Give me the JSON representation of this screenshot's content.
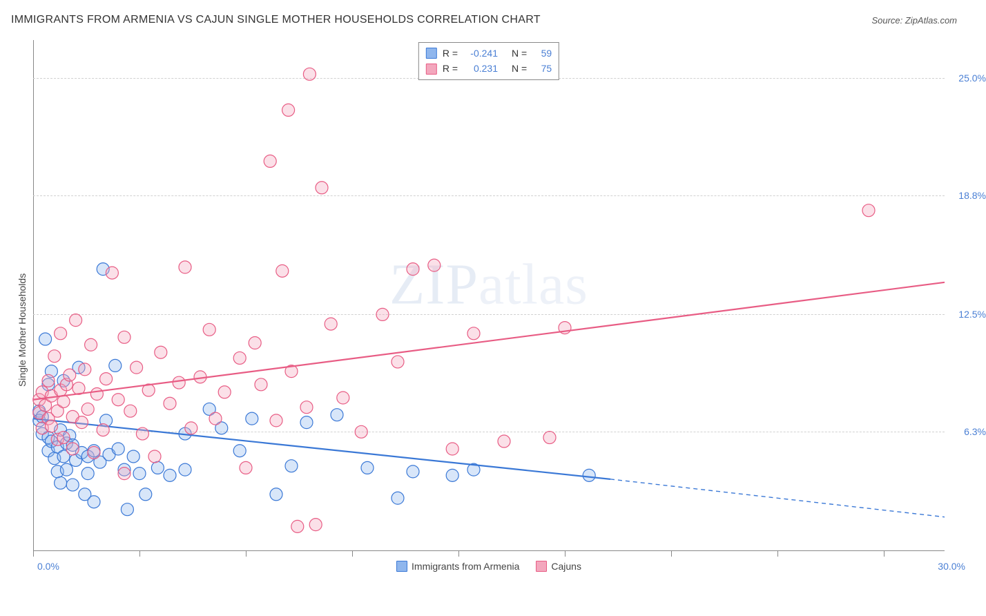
{
  "title": "IMMIGRANTS FROM ARMENIA VS CAJUN SINGLE MOTHER HOUSEHOLDS CORRELATION CHART",
  "source": "Source: ZipAtlas.com",
  "y_axis_label": "Single Mother Households",
  "watermark": {
    "bold": "ZIP",
    "light": "atlas"
  },
  "chart": {
    "type": "scatter",
    "xlim": [
      0,
      30
    ],
    "ylim": [
      0,
      27
    ],
    "x_ticks": [
      0,
      3.5,
      7,
      10.5,
      14,
      17.5,
      21,
      24.5,
      28
    ],
    "y_gridlines": [
      6.3,
      12.5,
      18.8,
      25.0
    ],
    "y_tick_labels": [
      "6.3%",
      "12.5%",
      "18.8%",
      "25.0%"
    ],
    "x_label_min": "0.0%",
    "x_label_max": "30.0%",
    "background_color": "#ffffff",
    "grid_color": "#d0d0d0",
    "axis_color": "#888888",
    "marker_radius": 9,
    "line_width": 2.2,
    "series": [
      {
        "name": "Immigrants from Armenia",
        "color_stroke": "#3a78d6",
        "color_fill": "#8fb6ed",
        "R": "-0.241",
        "N": "59",
        "trend": {
          "x1": 0,
          "y1": 7.0,
          "x2": 19,
          "y2": 3.8,
          "ext_x2": 30,
          "ext_y2": 1.8
        },
        "points": [
          [
            0.2,
            7.4
          ],
          [
            0.2,
            6.9
          ],
          [
            0.3,
            7.1
          ],
          [
            0.3,
            6.2
          ],
          [
            0.4,
            11.2
          ],
          [
            0.5,
            8.8
          ],
          [
            0.5,
            6.0
          ],
          [
            0.5,
            5.3
          ],
          [
            0.6,
            9.5
          ],
          [
            0.6,
            5.8
          ],
          [
            0.7,
            4.9
          ],
          [
            0.8,
            5.5
          ],
          [
            0.8,
            4.2
          ],
          [
            0.9,
            6.4
          ],
          [
            0.9,
            3.6
          ],
          [
            1.0,
            9.0
          ],
          [
            1.0,
            5.0
          ],
          [
            1.1,
            5.7
          ],
          [
            1.1,
            4.3
          ],
          [
            1.2,
            6.1
          ],
          [
            1.3,
            3.5
          ],
          [
            1.3,
            5.6
          ],
          [
            1.4,
            4.8
          ],
          [
            1.5,
            9.7
          ],
          [
            1.6,
            5.2
          ],
          [
            1.7,
            3.0
          ],
          [
            1.8,
            5.0
          ],
          [
            1.8,
            4.1
          ],
          [
            2.0,
            5.3
          ],
          [
            2.0,
            2.6
          ],
          [
            2.2,
            4.7
          ],
          [
            2.3,
            14.9
          ],
          [
            2.4,
            6.9
          ],
          [
            2.5,
            5.1
          ],
          [
            2.7,
            9.8
          ],
          [
            2.8,
            5.4
          ],
          [
            3.0,
            4.3
          ],
          [
            3.1,
            2.2
          ],
          [
            3.3,
            5.0
          ],
          [
            3.5,
            4.1
          ],
          [
            3.7,
            3.0
          ],
          [
            4.1,
            4.4
          ],
          [
            4.5,
            4.0
          ],
          [
            5.0,
            6.2
          ],
          [
            5.0,
            4.3
          ],
          [
            5.8,
            7.5
          ],
          [
            6.2,
            6.5
          ],
          [
            6.8,
            5.3
          ],
          [
            7.2,
            7.0
          ],
          [
            8.0,
            3.0
          ],
          [
            8.5,
            4.5
          ],
          [
            9.0,
            6.8
          ],
          [
            10.0,
            7.2
          ],
          [
            11.0,
            4.4
          ],
          [
            12.0,
            2.8
          ],
          [
            12.5,
            4.2
          ],
          [
            13.8,
            4.0
          ],
          [
            14.5,
            4.3
          ],
          [
            18.3,
            4.0
          ]
        ]
      },
      {
        "name": "Cajuns",
        "color_stroke": "#e85c84",
        "color_fill": "#f3a7bd",
        "R": "0.231",
        "N": "75",
        "trend": {
          "x1": 0,
          "y1": 8.0,
          "x2": 30,
          "y2": 14.2
        },
        "points": [
          [
            0.2,
            8.0
          ],
          [
            0.2,
            7.3
          ],
          [
            0.3,
            8.4
          ],
          [
            0.3,
            6.5
          ],
          [
            0.4,
            7.7
          ],
          [
            0.5,
            9.0
          ],
          [
            0.5,
            7.0
          ],
          [
            0.6,
            8.2
          ],
          [
            0.6,
            6.6
          ],
          [
            0.7,
            10.3
          ],
          [
            0.8,
            7.4
          ],
          [
            0.8,
            5.9
          ],
          [
            0.9,
            8.5
          ],
          [
            0.9,
            11.5
          ],
          [
            1.0,
            7.9
          ],
          [
            1.0,
            6.0
          ],
          [
            1.1,
            8.8
          ],
          [
            1.2,
            9.3
          ],
          [
            1.3,
            5.4
          ],
          [
            1.3,
            7.1
          ],
          [
            1.4,
            12.2
          ],
          [
            1.5,
            8.6
          ],
          [
            1.6,
            6.8
          ],
          [
            1.7,
            9.6
          ],
          [
            1.8,
            7.5
          ],
          [
            1.9,
            10.9
          ],
          [
            2.0,
            5.2
          ],
          [
            2.1,
            8.3
          ],
          [
            2.3,
            6.4
          ],
          [
            2.4,
            9.1
          ],
          [
            2.6,
            14.7
          ],
          [
            2.8,
            8.0
          ],
          [
            3.0,
            11.3
          ],
          [
            3.0,
            4.1
          ],
          [
            3.2,
            7.4
          ],
          [
            3.4,
            9.7
          ],
          [
            3.6,
            6.2
          ],
          [
            3.8,
            8.5
          ],
          [
            4.0,
            5.0
          ],
          [
            4.2,
            10.5
          ],
          [
            4.5,
            7.8
          ],
          [
            4.8,
            8.9
          ],
          [
            5.0,
            15.0
          ],
          [
            5.2,
            6.5
          ],
          [
            5.5,
            9.2
          ],
          [
            5.8,
            11.7
          ],
          [
            6.0,
            7.0
          ],
          [
            6.3,
            8.4
          ],
          [
            6.8,
            10.2
          ],
          [
            7.0,
            4.4
          ],
          [
            7.3,
            11.0
          ],
          [
            7.5,
            8.8
          ],
          [
            7.8,
            20.6
          ],
          [
            8.0,
            6.9
          ],
          [
            8.2,
            14.8
          ],
          [
            8.4,
            23.3
          ],
          [
            8.5,
            9.5
          ],
          [
            8.7,
            1.3
          ],
          [
            9.0,
            7.6
          ],
          [
            9.1,
            25.2
          ],
          [
            9.3,
            1.4
          ],
          [
            9.5,
            19.2
          ],
          [
            9.8,
            12.0
          ],
          [
            10.2,
            8.1
          ],
          [
            10.8,
            6.3
          ],
          [
            11.5,
            12.5
          ],
          [
            12.0,
            10.0
          ],
          [
            12.5,
            14.9
          ],
          [
            13.2,
            15.1
          ],
          [
            13.8,
            5.4
          ],
          [
            14.5,
            11.5
          ],
          [
            15.5,
            5.8
          ],
          [
            17.0,
            6.0
          ],
          [
            17.5,
            11.8
          ],
          [
            27.5,
            18.0
          ]
        ]
      }
    ]
  },
  "bottom_legend": [
    {
      "label": "Immigrants from Armenia",
      "fill": "#8fb6ed",
      "stroke": "#3a78d6"
    },
    {
      "label": "Cajuns",
      "fill": "#f3a7bd",
      "stroke": "#e85c84"
    }
  ]
}
